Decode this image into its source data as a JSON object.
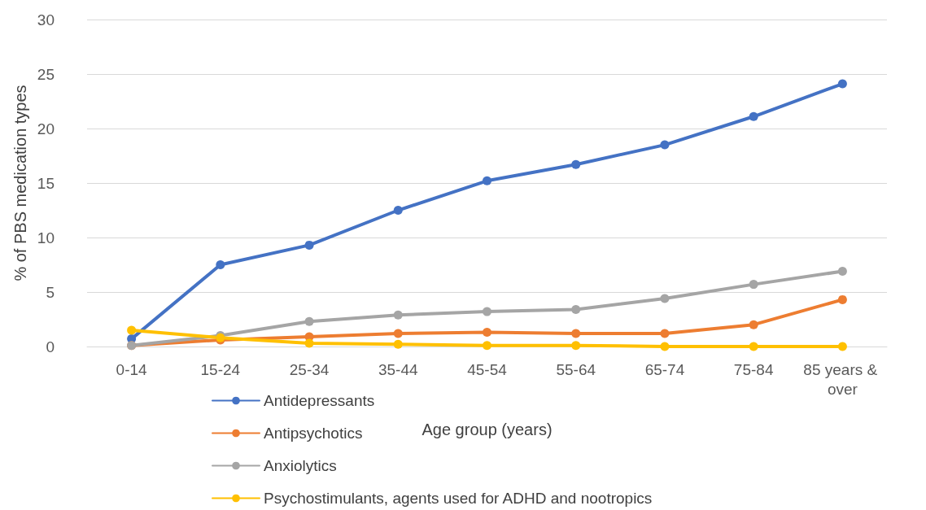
{
  "chart_data": {
    "type": "line",
    "xlabel": "Age group (years)",
    "ylabel": "% of PBS medication types",
    "categories": [
      "0-14",
      "15-24",
      "25-34",
      "35-44",
      "45-54",
      "55-64",
      "65-74",
      "75-84",
      "85 years & over"
    ],
    "series": [
      {
        "name": "Antidepressants",
        "color": "#4472c4",
        "values": [
          0.7,
          7.5,
          9.3,
          12.5,
          15.2,
          16.7,
          18.5,
          21.1,
          24.1
        ]
      },
      {
        "name": "Antipsychotics",
        "color": "#ed7d31",
        "values": [
          0.1,
          0.6,
          0.9,
          1.2,
          1.3,
          1.2,
          1.2,
          2.0,
          4.3
        ]
      },
      {
        "name": "Anxiolytics",
        "color": "#a5a5a5",
        "values": [
          0.1,
          1.0,
          2.3,
          2.9,
          3.2,
          3.4,
          4.4,
          5.7,
          6.9
        ]
      },
      {
        "name": "Psychostimulants, agents used for ADHD and nootropics",
        "color": "#ffc000",
        "values": [
          1.5,
          0.8,
          0.3,
          0.2,
          0.1,
          0.1,
          0.0,
          0.0,
          0.0
        ]
      }
    ],
    "ylim": [
      0,
      30
    ],
    "yticks": [
      0,
      5,
      10,
      15,
      20,
      25,
      30
    ],
    "grid": "y",
    "legend": "bottom",
    "marker": "circle",
    "line_style": "solid"
  }
}
